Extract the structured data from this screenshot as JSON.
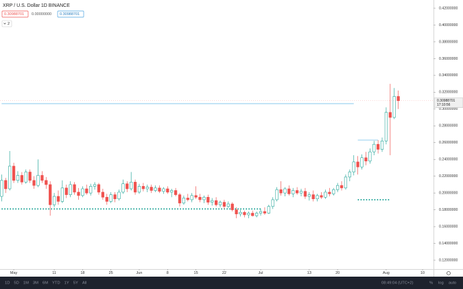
{
  "header": {
    "symbol": "XRP / U.S. Dollar  1D  BINANCE",
    "values": [
      "0.30988701",
      "0.00000000",
      "0.30988701"
    ],
    "indicator_count": "2"
  },
  "chart_data": {
    "type": "candlestick",
    "up_color": "#26a69a",
    "down_color": "#ef5350",
    "candles": [
      [
        0.196,
        0.222,
        0.19,
        0.215
      ],
      [
        0.215,
        0.218,
        0.2,
        0.205
      ],
      [
        0.205,
        0.25,
        0.203,
        0.232
      ],
      [
        0.232,
        0.236,
        0.212,
        0.215
      ],
      [
        0.215,
        0.226,
        0.212,
        0.221
      ],
      [
        0.221,
        0.225,
        0.21,
        0.213
      ],
      [
        0.213,
        0.228,
        0.211,
        0.225
      ],
      [
        0.225,
        0.228,
        0.212,
        0.215
      ],
      [
        0.215,
        0.22,
        0.205,
        0.209
      ],
      [
        0.209,
        0.24,
        0.207,
        0.221
      ],
      [
        0.221,
        0.226,
        0.212,
        0.215
      ],
      [
        0.215,
        0.219,
        0.205,
        0.21
      ],
      [
        0.21,
        0.214,
        0.173,
        0.186
      ],
      [
        0.186,
        0.2,
        0.183,
        0.196
      ],
      [
        0.196,
        0.203,
        0.186,
        0.19
      ],
      [
        0.19,
        0.215,
        0.188,
        0.206
      ],
      [
        0.206,
        0.21,
        0.194,
        0.198
      ],
      [
        0.198,
        0.214,
        0.195,
        0.21
      ],
      [
        0.21,
        0.213,
        0.198,
        0.201
      ],
      [
        0.201,
        0.206,
        0.192,
        0.197
      ],
      [
        0.197,
        0.208,
        0.195,
        0.205
      ],
      [
        0.205,
        0.21,
        0.198,
        0.2
      ],
      [
        0.2,
        0.211,
        0.197,
        0.208
      ],
      [
        0.208,
        0.213,
        0.204,
        0.21
      ],
      [
        0.21,
        0.212,
        0.198,
        0.201
      ],
      [
        0.201,
        0.205,
        0.192,
        0.195
      ],
      [
        0.195,
        0.199,
        0.186,
        0.19
      ],
      [
        0.19,
        0.201,
        0.188,
        0.198
      ],
      [
        0.198,
        0.201,
        0.189,
        0.193
      ],
      [
        0.193,
        0.204,
        0.191,
        0.201
      ],
      [
        0.201,
        0.216,
        0.199,
        0.211
      ],
      [
        0.211,
        0.214,
        0.201,
        0.205
      ],
      [
        0.205,
        0.225,
        0.203,
        0.213
      ],
      [
        0.213,
        0.216,
        0.198,
        0.201
      ],
      [
        0.201,
        0.211,
        0.199,
        0.208
      ],
      [
        0.208,
        0.212,
        0.202,
        0.205
      ],
      [
        0.205,
        0.21,
        0.201,
        0.207
      ],
      [
        0.207,
        0.21,
        0.2,
        0.203
      ],
      [
        0.203,
        0.209,
        0.201,
        0.206
      ],
      [
        0.206,
        0.209,
        0.2,
        0.202
      ],
      [
        0.202,
        0.207,
        0.199,
        0.205
      ],
      [
        0.205,
        0.208,
        0.199,
        0.201
      ],
      [
        0.201,
        0.205,
        0.195,
        0.203
      ],
      [
        0.203,
        0.206,
        0.196,
        0.198
      ],
      [
        0.198,
        0.2,
        0.184,
        0.188
      ],
      [
        0.188,
        0.197,
        0.186,
        0.194
      ],
      [
        0.194,
        0.199,
        0.19,
        0.192
      ],
      [
        0.192,
        0.2,
        0.189,
        0.197
      ],
      [
        0.197,
        0.208,
        0.193,
        0.195
      ],
      [
        0.195,
        0.199,
        0.189,
        0.192
      ],
      [
        0.192,
        0.197,
        0.188,
        0.195
      ],
      [
        0.195,
        0.198,
        0.186,
        0.189
      ],
      [
        0.189,
        0.194,
        0.185,
        0.191
      ],
      [
        0.191,
        0.195,
        0.184,
        0.186
      ],
      [
        0.186,
        0.191,
        0.183,
        0.189
      ],
      [
        0.189,
        0.192,
        0.181,
        0.184
      ],
      [
        0.184,
        0.19,
        0.182,
        0.187
      ],
      [
        0.187,
        0.189,
        0.178,
        0.18
      ],
      [
        0.18,
        0.183,
        0.17,
        0.175
      ],
      [
        0.175,
        0.18,
        0.172,
        0.177
      ],
      [
        0.177,
        0.179,
        0.171,
        0.174
      ],
      [
        0.174,
        0.178,
        0.17,
        0.176
      ],
      [
        0.176,
        0.179,
        0.172,
        0.173
      ],
      [
        0.173,
        0.178,
        0.171,
        0.176
      ],
      [
        0.176,
        0.181,
        0.173,
        0.178
      ],
      [
        0.178,
        0.183,
        0.174,
        0.176
      ],
      [
        0.176,
        0.186,
        0.175,
        0.184
      ],
      [
        0.184,
        0.195,
        0.181,
        0.192
      ],
      [
        0.192,
        0.207,
        0.19,
        0.204
      ],
      [
        0.204,
        0.214,
        0.197,
        0.2
      ],
      [
        0.2,
        0.207,
        0.196,
        0.205
      ],
      [
        0.205,
        0.209,
        0.197,
        0.199
      ],
      [
        0.199,
        0.206,
        0.195,
        0.203
      ],
      [
        0.203,
        0.207,
        0.198,
        0.2
      ],
      [
        0.2,
        0.205,
        0.196,
        0.202
      ],
      [
        0.202,
        0.206,
        0.193,
        0.196
      ],
      [
        0.196,
        0.201,
        0.191,
        0.198
      ],
      [
        0.198,
        0.203,
        0.19,
        0.193
      ],
      [
        0.193,
        0.199,
        0.19,
        0.197
      ],
      [
        0.197,
        0.201,
        0.193,
        0.195
      ],
      [
        0.195,
        0.204,
        0.193,
        0.201
      ],
      [
        0.201,
        0.206,
        0.196,
        0.199
      ],
      [
        0.199,
        0.206,
        0.197,
        0.204
      ],
      [
        0.204,
        0.212,
        0.201,
        0.209
      ],
      [
        0.209,
        0.214,
        0.203,
        0.206
      ],
      [
        0.206,
        0.222,
        0.204,
        0.219
      ],
      [
        0.219,
        0.228,
        0.214,
        0.225
      ],
      [
        0.225,
        0.245,
        0.221,
        0.237
      ],
      [
        0.237,
        0.244,
        0.222,
        0.231
      ],
      [
        0.231,
        0.246,
        0.228,
        0.242
      ],
      [
        0.242,
        0.249,
        0.233,
        0.238
      ],
      [
        0.238,
        0.253,
        0.235,
        0.249
      ],
      [
        0.249,
        0.262,
        0.245,
        0.258
      ],
      [
        0.258,
        0.263,
        0.247,
        0.252
      ],
      [
        0.252,
        0.266,
        0.249,
        0.262
      ],
      [
        0.262,
        0.302,
        0.258,
        0.296
      ],
      [
        0.296,
        0.33,
        0.245,
        0.29
      ],
      [
        0.29,
        0.325,
        0.288,
        0.315
      ],
      [
        0.315,
        0.322,
        0.3,
        0.3099
      ]
    ],
    "xlim": [
      -0.4,
      106.7
    ],
    "xticks": [
      {
        "value": 3,
        "label": "May"
      },
      {
        "value": 13,
        "label": "11"
      },
      {
        "value": 20,
        "label": "18"
      },
      {
        "value": 27,
        "label": "25"
      },
      {
        "value": 34,
        "label": "Jun"
      },
      {
        "value": 41,
        "label": "8"
      },
      {
        "value": 48,
        "label": "15"
      },
      {
        "value": 55,
        "label": "22"
      },
      {
        "value": 64,
        "label": "Jul"
      },
      {
        "value": 76,
        "label": "13"
      },
      {
        "value": 83,
        "label": "20"
      },
      {
        "value": 95,
        "label": "Aug"
      },
      {
        "value": 104,
        "label": "10"
      }
    ],
    "ylim": [
      0.1094,
      0.4298
    ],
    "yticks": [
      {
        "value": 0.42,
        "label": "0.42000000"
      },
      {
        "value": 0.4,
        "label": "0.40000000"
      },
      {
        "value": 0.38,
        "label": "0.38000000"
      },
      {
        "value": 0.36,
        "label": "0.36000000"
      },
      {
        "value": 0.34,
        "label": "0.34000000"
      },
      {
        "value": 0.32,
        "label": "0.32000000"
      },
      {
        "value": 0.3,
        "label": "0.30000000"
      },
      {
        "value": 0.28,
        "label": "0.28000000"
      },
      {
        "value": 0.26,
        "label": "0.26000000"
      },
      {
        "value": 0.24,
        "label": "0.24000000"
      },
      {
        "value": 0.22,
        "label": "0.22000000"
      },
      {
        "value": 0.2,
        "label": "0.20000000"
      },
      {
        "value": 0.18,
        "label": "0.18000000"
      },
      {
        "value": 0.16,
        "label": "0.16000000"
      },
      {
        "value": 0.14,
        "label": "0.14000000"
      },
      {
        "value": 0.12,
        "label": "0.12000000"
      }
    ],
    "levels": [
      {
        "price": 0.3064,
        "from": 0,
        "to": 87,
        "color": "#9fd3f0",
        "style": "solid"
      },
      {
        "price": 0.263,
        "from": 88,
        "to": 93,
        "color": "#9fd3f0",
        "style": "solid"
      },
      {
        "price": 0.181,
        "from": 0,
        "to": 64,
        "color": "#26a69a",
        "style": "dotted"
      },
      {
        "price": 0.192,
        "from": 88,
        "to": 96,
        "color": "#26a69a",
        "style": "dotted"
      }
    ],
    "last_price": {
      "value": 0.3099,
      "label": "0.30988701",
      "countdown": "17:10:56"
    }
  },
  "footer": {
    "ranges": [
      "1D",
      "5D",
      "1M",
      "3M",
      "6M",
      "YTD",
      "1Y",
      "5Y",
      "All"
    ],
    "clock": "08:49:04 (UTC+2)",
    "options": [
      "%",
      "log",
      "auto"
    ]
  }
}
